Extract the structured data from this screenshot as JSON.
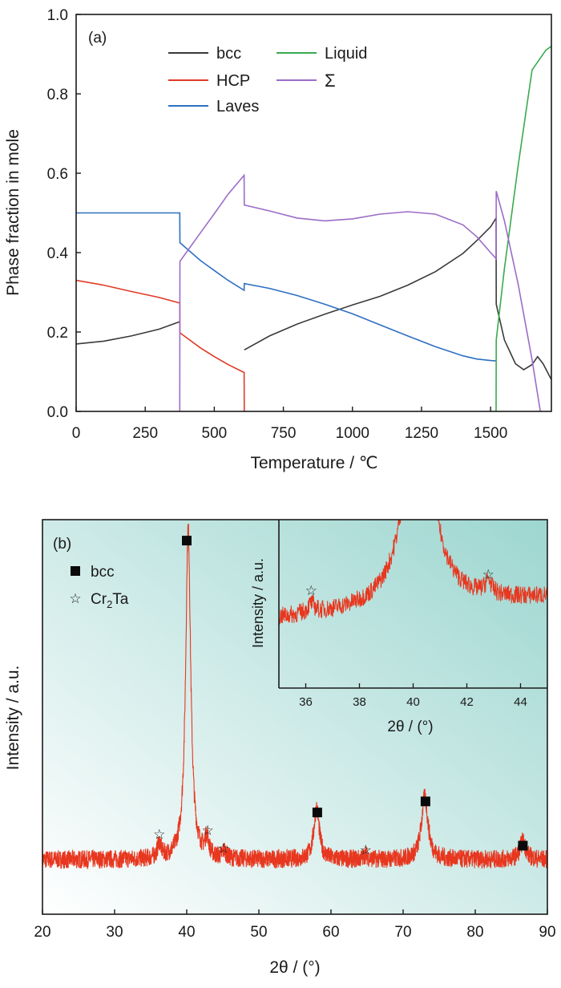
{
  "chart_data": [
    {
      "panel_label": "(a)",
      "type": "line",
      "xlabel": "Temperature / ℃",
      "ylabel": "Phase fraction in mole",
      "xlim": [
        0,
        1720
      ],
      "ylim": [
        0,
        1.0
      ],
      "xticks": [
        0,
        250,
        500,
        750,
        1000,
        1250,
        1500
      ],
      "yticks": [
        0.0,
        0.2,
        0.4,
        0.6,
        0.8,
        1.0
      ],
      "legend_position": "top-center",
      "series": [
        {
          "name": "bcc",
          "color": "#3a3a3a",
          "x": [
            0,
            100,
            200,
            300,
            375,
            375.5,
            608,
            608.5,
            700,
            800,
            900,
            1000,
            1100,
            1200,
            1300,
            1400,
            1450,
            1500,
            1520,
            1520.5,
            1550,
            1590,
            1620,
            1650,
            1670,
            1690,
            1720
          ],
          "y": [
            0.17,
            0.177,
            0.19,
            0.207,
            0.226,
            null,
            null,
            0.155,
            0.19,
            0.22,
            0.245,
            0.268,
            0.29,
            0.318,
            0.352,
            0.398,
            0.43,
            0.465,
            0.487,
            0.27,
            0.18,
            0.12,
            0.105,
            0.118,
            0.138,
            0.12,
            0.08
          ]
        },
        {
          "name": "HCP",
          "color": "#e03a26",
          "x": [
            0,
            100,
            200,
            300,
            375,
            375.5,
            450,
            500,
            550,
            608,
            608.5
          ],
          "y": [
            0.33,
            0.318,
            0.302,
            0.287,
            0.273,
            0.198,
            0.16,
            0.138,
            0.118,
            0.098,
            0.0
          ]
        },
        {
          "name": "Laves",
          "color": "#2e6fc2",
          "x": [
            0,
            375,
            375.5,
            450,
            500,
            550,
            608,
            608.5,
            700,
            800,
            900,
            1000,
            1100,
            1200,
            1300,
            1400,
            1450,
            1500,
            1520
          ],
          "y": [
            0.5,
            0.5,
            0.425,
            0.38,
            0.355,
            0.33,
            0.305,
            0.322,
            0.31,
            0.292,
            0.27,
            0.246,
            0.218,
            0.19,
            0.163,
            0.14,
            0.132,
            0.128,
            0.127
          ]
        },
        {
          "name": "Liquid",
          "color": "#3aaa4e",
          "x": [
            1520,
            1520.5,
            1550,
            1600,
            1650,
            1700,
            1720
          ],
          "y": [
            0.0,
            0.18,
            0.36,
            0.62,
            0.86,
            0.91,
            0.92
          ]
        },
        {
          "name": "Σ",
          "color": "#9b6cc8",
          "x": [
            375,
            375.5,
            450,
            500,
            550,
            608,
            608.5,
            700,
            800,
            900,
            1000,
            1100,
            1200,
            1300,
            1400,
            1450,
            1500,
            1520,
            1520.5,
            1550,
            1600,
            1650,
            1680
          ],
          "y": [
            0.0,
            0.378,
            0.45,
            0.498,
            0.547,
            0.595,
            0.52,
            0.505,
            0.487,
            0.48,
            0.485,
            0.497,
            0.503,
            0.497,
            0.47,
            0.44,
            0.4,
            0.385,
            0.555,
            0.48,
            0.32,
            0.13,
            0.0
          ]
        }
      ]
    },
    {
      "panel_label": "(b)",
      "type": "line",
      "xlabel": "2θ / (°)",
      "ylabel": "Intensity / a.u.",
      "xlim": [
        20,
        90
      ],
      "xticks": [
        20,
        30,
        40,
        50,
        60,
        70,
        80,
        90
      ],
      "line_color": "#e8371f",
      "background_gradient": [
        "#ffffff",
        "#9dd6d0"
      ],
      "legend_position": "top-left",
      "legend": [
        {
          "symbol": "filled-square",
          "label": "bcc"
        },
        {
          "symbol": "star",
          "label_main": "Cr",
          "label_sub": "2",
          "label_end": "Ta"
        }
      ],
      "peaks": [
        {
          "x": 40.2,
          "height": 0.9,
          "width": 0.42,
          "phase": "bcc"
        },
        {
          "x": 36.2,
          "height": 0.04,
          "width": 0.3,
          "phase": "Cr2Ta"
        },
        {
          "x": 42.8,
          "height": 0.05,
          "width": 0.3,
          "phase": "Cr2Ta"
        },
        {
          "x": 45.2,
          "height": 0.02,
          "width": 0.3,
          "phase": "Cr2Ta"
        },
        {
          "x": 58.0,
          "height": 0.14,
          "width": 0.45,
          "phase": "bcc"
        },
        {
          "x": 64.8,
          "height": 0.012,
          "width": 0.3,
          "phase": "Cr2Ta"
        },
        {
          "x": 73.0,
          "height": 0.17,
          "width": 0.55,
          "phase": "bcc"
        },
        {
          "x": 86.6,
          "height": 0.05,
          "width": 0.5,
          "phase": "bcc"
        }
      ],
      "baseline": 0.1,
      "markers": [
        {
          "symbol": "square",
          "x": 40.0,
          "y_level": 0.965
        },
        {
          "symbol": "star",
          "x": 36.2,
          "y_level": 0.17
        },
        {
          "symbol": "star",
          "x": 42.9,
          "y_level": 0.18
        },
        {
          "symbol": "star",
          "x": 45.1,
          "y_level": 0.132
        },
        {
          "symbol": "square",
          "x": 58.1,
          "y_level": 0.228
        },
        {
          "symbol": "star",
          "x": 64.8,
          "y_level": 0.127
        },
        {
          "symbol": "square",
          "x": 73.1,
          "y_level": 0.258
        },
        {
          "symbol": "square",
          "x": 86.6,
          "y_level": 0.138
        }
      ],
      "inset": {
        "type": "line",
        "xlabel": "2θ / (°)",
        "ylabel": "Intensity / a.u.",
        "xlim": [
          35,
          45
        ],
        "xticks": [
          36,
          38,
          40,
          42,
          44
        ],
        "markers": [
          {
            "symbol": "star",
            "x": 36.2
          },
          {
            "symbol": "star",
            "x": 42.8
          }
        ]
      }
    }
  ]
}
